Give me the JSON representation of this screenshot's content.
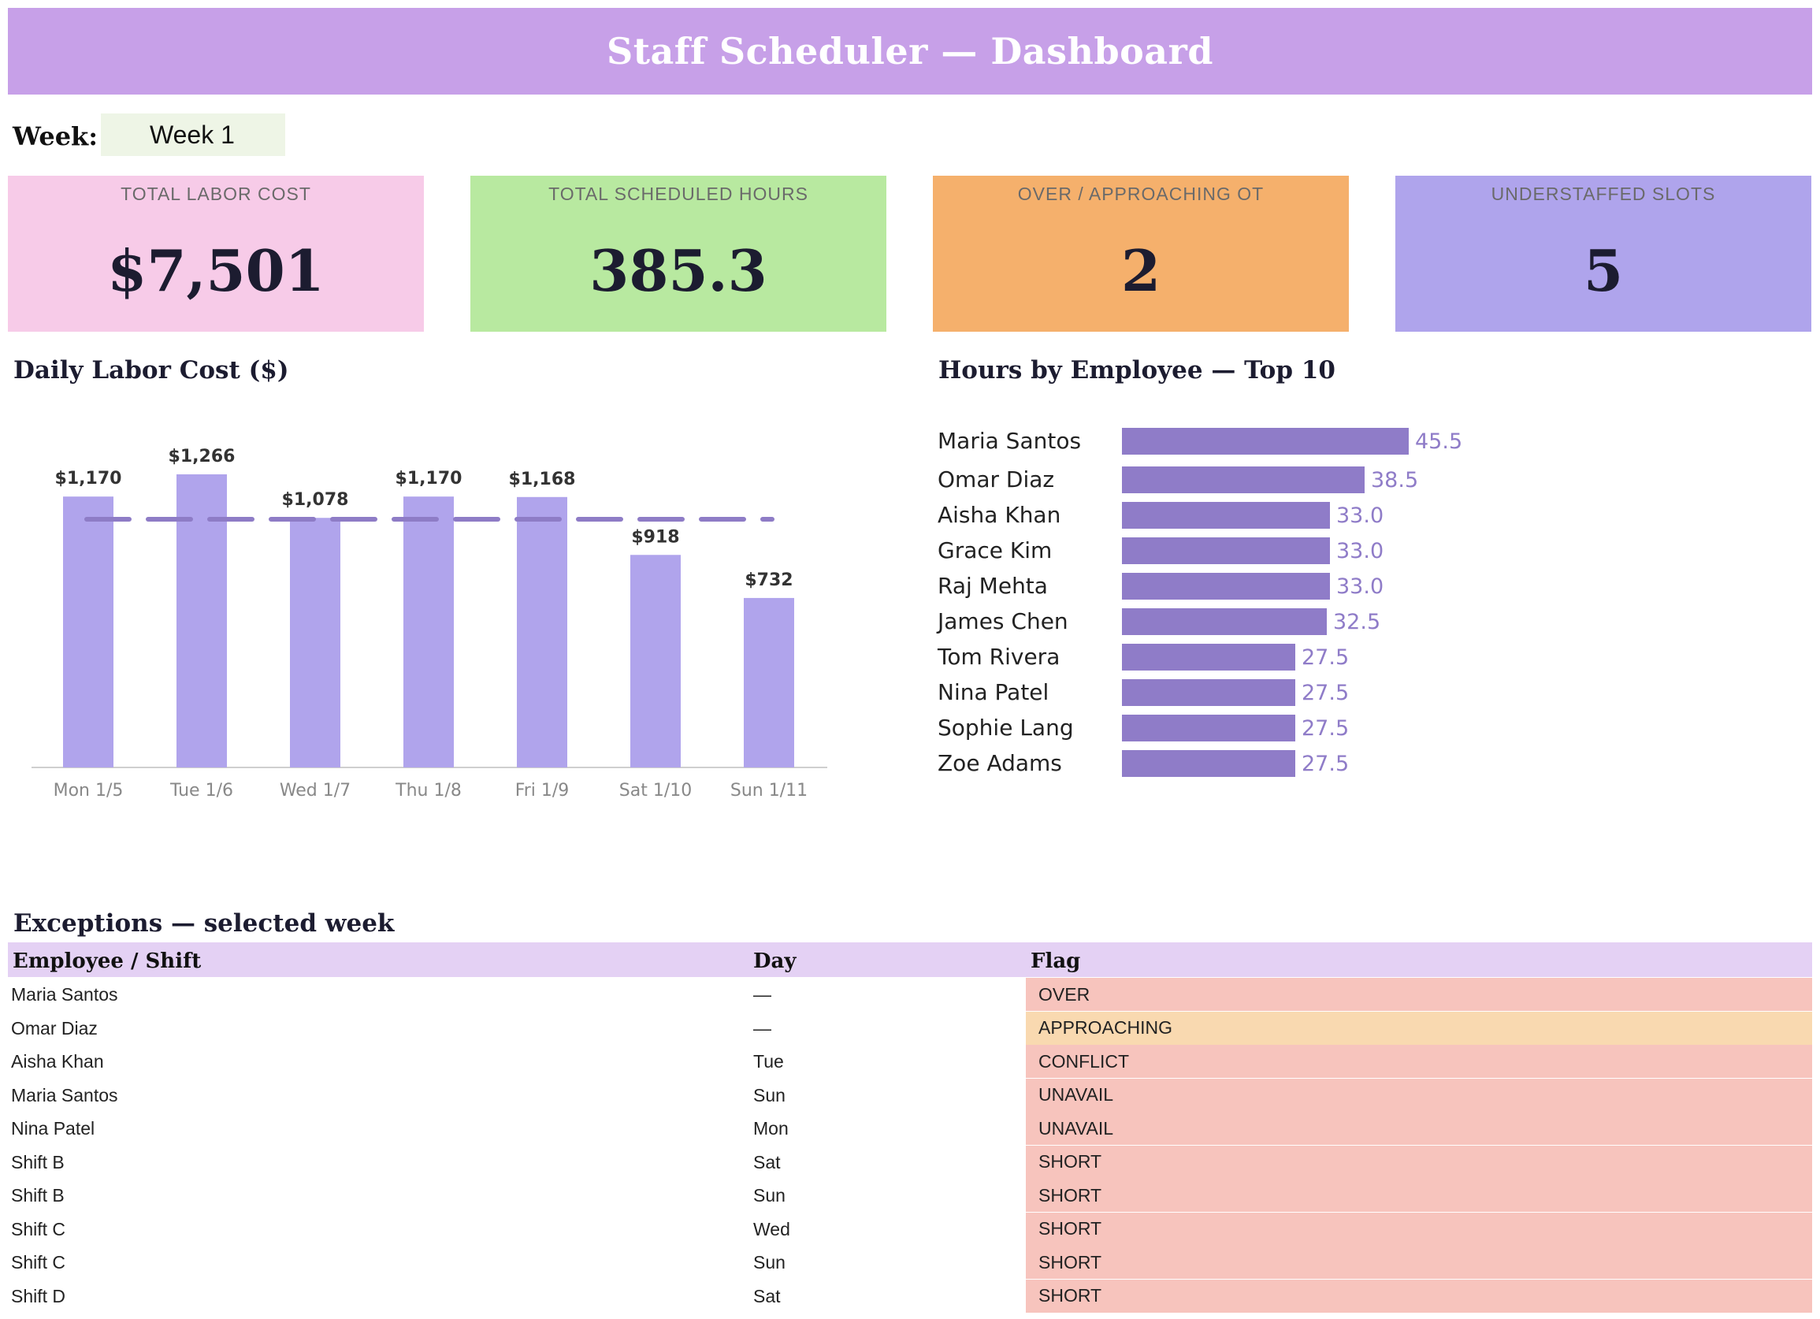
{
  "header": {
    "title": "Staff Scheduler — Dashboard"
  },
  "week": {
    "label": "Week:",
    "value": "Week 1"
  },
  "kpis": [
    {
      "label": "TOTAL LABOR COST",
      "value": "$7,501",
      "color": "#f7cbe8"
    },
    {
      "label": "TOTAL SCHEDULED HOURS",
      "value": "385.3",
      "color": "#b8e9a0"
    },
    {
      "label": "OVER / APPROACHING OT",
      "value": "2",
      "color": "#f5b06c"
    },
    {
      "label": "UNDERSTAFFED SLOTS",
      "value": "5",
      "color": "#afa4ec"
    }
  ],
  "daily_cost_chart": {
    "title": "Daily Labor Cost ($)"
  },
  "hours_chart": {
    "title": "Hours by Employee — Top 10"
  },
  "chart_data": [
    {
      "type": "bar",
      "title": "Daily Labor Cost ($)",
      "categories": [
        "Mon 1/5",
        "Tue 1/6",
        "Wed 1/7",
        "Thu 1/8",
        "Fri 1/9",
        "Sat 1/10",
        "Sun 1/11"
      ],
      "values": [
        1170,
        1266,
        1078,
        1170,
        1168,
        918,
        732
      ],
      "data_labels": [
        "$1,170",
        "$1,266",
        "$1,078",
        "$1,170",
        "$1,168",
        "$918",
        "$732"
      ],
      "reference_line": 1072,
      "ylim": [
        0,
        1400
      ],
      "bar_color": "#b0a4ec",
      "reference_color": "#8e7cc6",
      "grid": false
    },
    {
      "type": "bar",
      "orientation": "horizontal",
      "title": "Hours by Employee — Top 10",
      "categories": [
        "Maria Santos",
        "Omar Diaz",
        "Aisha Khan",
        "Grace Kim",
        "Raj Mehta",
        "James Chen",
        "Tom Rivera",
        "Nina Patel",
        "Sophie Lang",
        "Zoe Adams"
      ],
      "values": [
        45.5,
        38.5,
        33.0,
        33.0,
        33.0,
        32.5,
        27.5,
        27.5,
        27.5,
        27.5
      ],
      "data_labels": [
        "45.5",
        "38.5",
        "33.0",
        "33.0",
        "33.0",
        "32.5",
        "27.5",
        "27.5",
        "27.5",
        "27.5"
      ],
      "xlim": [
        0,
        45.5
      ],
      "bar_color": "#8f7cc8",
      "grid": false
    }
  ],
  "exceptions": {
    "title": "Exceptions — selected week",
    "columns": [
      "Employee / Shift",
      "Day",
      "Flag"
    ],
    "rows": [
      {
        "who": "Maria Santos",
        "day": "—",
        "flag": "OVER",
        "flag_color": "#f7c4bd"
      },
      {
        "who": "Omar Diaz",
        "day": "—",
        "flag": "APPROACHING",
        "flag_color": "#f9d9b0"
      },
      {
        "who": "Aisha Khan",
        "day": "Tue",
        "flag": "CONFLICT",
        "flag_color": "#f7c4bd"
      },
      {
        "who": "Maria Santos",
        "day": "Sun",
        "flag": "UNAVAIL",
        "flag_color": "#f7c4bd"
      },
      {
        "who": "Nina Patel",
        "day": "Mon",
        "flag": "UNAVAIL",
        "flag_color": "#f7c4bd"
      },
      {
        "who": "Shift B",
        "day": "Sat",
        "flag": "SHORT",
        "flag_color": "#f7c4bd"
      },
      {
        "who": "Shift B",
        "day": "Sun",
        "flag": "SHORT",
        "flag_color": "#f7c4bd"
      },
      {
        "who": "Shift C",
        "day": "Wed",
        "flag": "SHORT",
        "flag_color": "#f7c4bd"
      },
      {
        "who": "Shift C",
        "day": "Sun",
        "flag": "SHORT",
        "flag_color": "#f7c4bd"
      },
      {
        "who": "Shift D",
        "day": "Sat",
        "flag": "SHORT",
        "flag_color": "#f7c4bd"
      }
    ]
  }
}
